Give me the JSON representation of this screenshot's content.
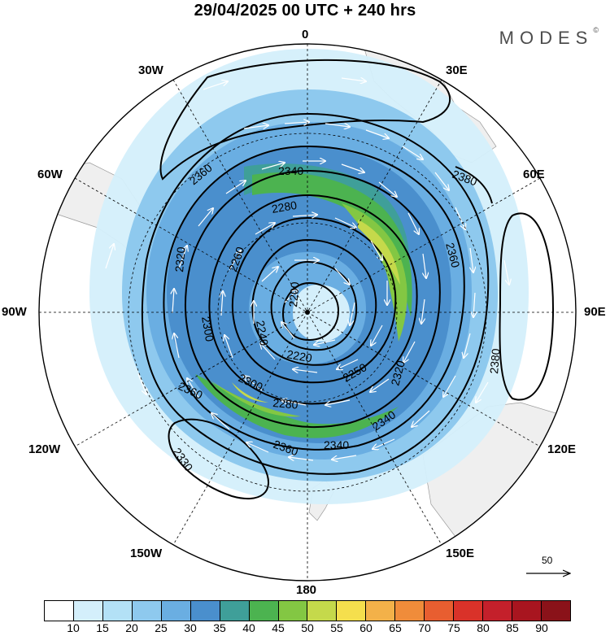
{
  "title": "29/04/2025  00 UTC  + 240 hrs",
  "brand": {
    "name": "MODES",
    "mark": "©"
  },
  "map": {
    "projection": "polar stereographic",
    "hemisphere": "south",
    "longitude_labels": {
      "top": "0",
      "top_right": "30E",
      "right_upper": "60E",
      "right": "90E",
      "right_lower": "120E",
      "bottom_right": "150E",
      "bottom": "180",
      "bottom_left": "150W",
      "left_lower": "120W",
      "left": "90W",
      "left_upper": "60W",
      "top_left": "30W"
    },
    "contour_labels": [
      "2200",
      "2220",
      "2240",
      "2250",
      "2260",
      "2280",
      "2280",
      "2300",
      "2300",
      "2320",
      "2320",
      "2330",
      "2340",
      "2340",
      "2340",
      "2360",
      "2360",
      "2360",
      "2360",
      "2380",
      "2380"
    ],
    "wind_reference": {
      "value": "50"
    }
  },
  "legend": {
    "ticks": [
      "10",
      "15",
      "20",
      "25",
      "30",
      "35",
      "40",
      "45",
      "50",
      "55",
      "60",
      "65",
      "70",
      "75",
      "80",
      "85",
      "90"
    ],
    "colors": [
      "#ffffff",
      "#d4effb",
      "#b3e1f6",
      "#8ec9ee",
      "#6aaee2",
      "#4a8fcd",
      "#3f9f99",
      "#4cb350",
      "#83c743",
      "#c5d94b",
      "#f5df4d",
      "#f3b149",
      "#f08c3a",
      "#e85e30",
      "#d93229",
      "#c4202b",
      "#a8151f",
      "#8a1219"
    ]
  }
}
